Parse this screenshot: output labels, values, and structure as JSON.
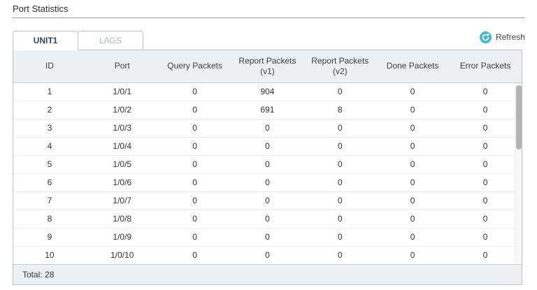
{
  "page": {
    "title": "Port Statistics"
  },
  "toolbar": {
    "refresh_label": "Refresh"
  },
  "icons": {
    "refresh": "circular-arrow-refresh-icon"
  },
  "colors": {
    "accent_teal": "#46b8c9",
    "active_tab_text": "#234c5e",
    "header_bg": "#edeff0",
    "panel_border": "#bfc3c6"
  },
  "tabs": [
    {
      "label": "UNIT1",
      "active": true
    },
    {
      "label": "LAGS",
      "active": false
    }
  ],
  "table": {
    "columns": [
      {
        "label": "ID",
        "sub": ""
      },
      {
        "label": "Port",
        "sub": ""
      },
      {
        "label": "Query Packets",
        "sub": ""
      },
      {
        "label": "Report Packets",
        "sub": "(v1)"
      },
      {
        "label": "Report Packets",
        "sub": "(v2)"
      },
      {
        "label": "Done Packets",
        "sub": ""
      },
      {
        "label": "Error Packets",
        "sub": ""
      }
    ],
    "rows": [
      [
        "1",
        "1/0/1",
        "0",
        "904",
        "0",
        "0",
        "0"
      ],
      [
        "2",
        "1/0/2",
        "0",
        "691",
        "8",
        "0",
        "0"
      ],
      [
        "3",
        "1/0/3",
        "0",
        "0",
        "0",
        "0",
        "0"
      ],
      [
        "4",
        "1/0/4",
        "0",
        "0",
        "0",
        "0",
        "0"
      ],
      [
        "5",
        "1/0/5",
        "0",
        "0",
        "0",
        "0",
        "0"
      ],
      [
        "6",
        "1/0/6",
        "0",
        "0",
        "0",
        "0",
        "0"
      ],
      [
        "7",
        "1/0/7",
        "0",
        "0",
        "0",
        "0",
        "0"
      ],
      [
        "8",
        "1/0/8",
        "0",
        "0",
        "0",
        "0",
        "0"
      ],
      [
        "9",
        "1/0/9",
        "0",
        "0",
        "0",
        "0",
        "0"
      ],
      [
        "10",
        "1/0/10",
        "0",
        "0",
        "0",
        "0",
        "0"
      ]
    ],
    "footer": {
      "total_label": "Total: 28"
    }
  }
}
